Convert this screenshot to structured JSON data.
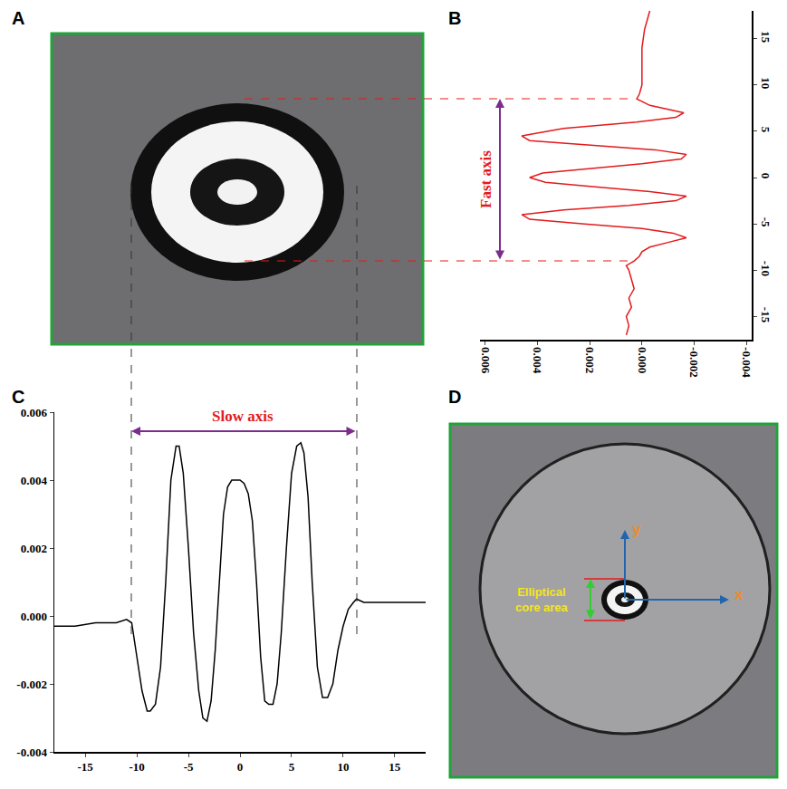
{
  "panels": [
    {
      "label": "A"
    },
    {
      "label": "D",
      "annotation": "Elliptical core area",
      "axis_labels": [
        "x",
        "y"
      ]
    }
  ],
  "chart_data": [
    {
      "label": "B",
      "type": "line",
      "color": "#e31a1c",
      "grid": false,
      "annotations": [
        "Fast axis"
      ],
      "x": [
        -0.0003,
        -0.0001,
        0,
        0,
        0,
        0.0001,
        0.0002,
        -0.0003,
        -0.0016,
        -0.0013,
        0.0002,
        0.003,
        0.0046,
        0.0043,
        0.002,
        -0.0005,
        -0.0017,
        -0.0015,
        0,
        0.002,
        0.0038,
        0.0043,
        0.0037,
        0.0018,
        -0.0003,
        -0.0017,
        -0.0013,
        0.0005,
        0.003,
        0.0046,
        0.0043,
        0.0022,
        0,
        -0.0012,
        -0.0017,
        -0.001,
        -0.0003,
        0,
        0.0001,
        0.0003,
        0.0006,
        0.0005,
        0.0004,
        0.0003,
        0.0005,
        0.0004,
        0.0006,
        0.0005,
        0.0006
      ],
      "y": [
        18,
        16,
        14,
        12,
        10,
        9,
        8.5,
        7.8,
        7,
        6.5,
        6,
        5.3,
        4.5,
        4,
        3.5,
        3,
        2.5,
        2,
        1.5,
        1,
        0.5,
        0,
        -0.5,
        -1,
        -1.5,
        -2,
        -2.5,
        -3,
        -3.5,
        -4,
        -4.5,
        -5,
        -5.5,
        -6,
        -6.5,
        -7,
        -7.5,
        -8,
        -8.5,
        -9,
        -9.5,
        -10,
        -11,
        -12,
        -13,
        -14,
        -15,
        -16,
        -17
      ],
      "xlim": [
        0.0062,
        -0.0042
      ],
      "xticks": [
        0.006,
        0.004,
        0.002,
        {
          "value": 0,
          "label": "0.000"
        },
        -0.002,
        -0.004
      ],
      "ylim": [
        -17.5,
        18
      ],
      "yticks": [
        -15,
        -10,
        -5,
        0,
        5,
        10,
        15
      ]
    },
    {
      "label": "C",
      "type": "line",
      "color": "#000000",
      "grid": false,
      "annotations": [
        "Slow axis"
      ],
      "x": [
        -18,
        -16,
        -14,
        -12,
        -11,
        -10.5,
        -10,
        -9.5,
        -9,
        -8.7,
        -8.2,
        -7.7,
        -7.2,
        -6.7,
        -6.2,
        -5.9,
        -5.5,
        -5,
        -4.5,
        -4,
        -3.6,
        -3.2,
        -2.8,
        -2.4,
        -2,
        -1.6,
        -1.2,
        -0.8,
        -0.4,
        0,
        0.4,
        0.8,
        1.2,
        1.6,
        2,
        2.4,
        2.8,
        3.2,
        3.6,
        4,
        4.5,
        5,
        5.5,
        5.9,
        6.2,
        6.6,
        7,
        7.5,
        8,
        8.5,
        9,
        9.5,
        10,
        10.5,
        11,
        11.3,
        12,
        14,
        16,
        18
      ],
      "values": [
        -0.0003,
        -0.0003,
        -0.0002,
        -0.0002,
        -0.0001,
        -0.0002,
        -0.0012,
        -0.0022,
        -0.0028,
        -0.0028,
        -0.0026,
        -0.0015,
        0.001,
        0.004,
        0.005,
        0.005,
        0.0042,
        0.002,
        -0.0005,
        -0.0022,
        -0.003,
        -0.0031,
        -0.0025,
        -0.001,
        0.001,
        0.003,
        0.0038,
        0.004,
        0.004,
        0.004,
        0.0039,
        0.0036,
        0.0028,
        0.001,
        -0.0012,
        -0.0025,
        -0.0026,
        -0.0026,
        -0.002,
        -0.0005,
        0.002,
        0.0042,
        0.005,
        0.0051,
        0.0048,
        0.0035,
        0.001,
        -0.0015,
        -0.0024,
        -0.0024,
        -0.002,
        -0.001,
        -0.0003,
        0.0002,
        0.0004,
        0.0005,
        0.0004,
        0.0004,
        0.0004,
        0.0004
      ],
      "xlim": [
        -18,
        18
      ],
      "xticks": [
        -15,
        -10,
        -5,
        0,
        5,
        10,
        15
      ],
      "ylim": [
        -0.004,
        0.006
      ],
      "yticks": [
        -0.004,
        -0.002,
        {
          "value": 0,
          "label": "0.000"
        },
        0.002,
        0.004,
        0.006
      ]
    }
  ]
}
